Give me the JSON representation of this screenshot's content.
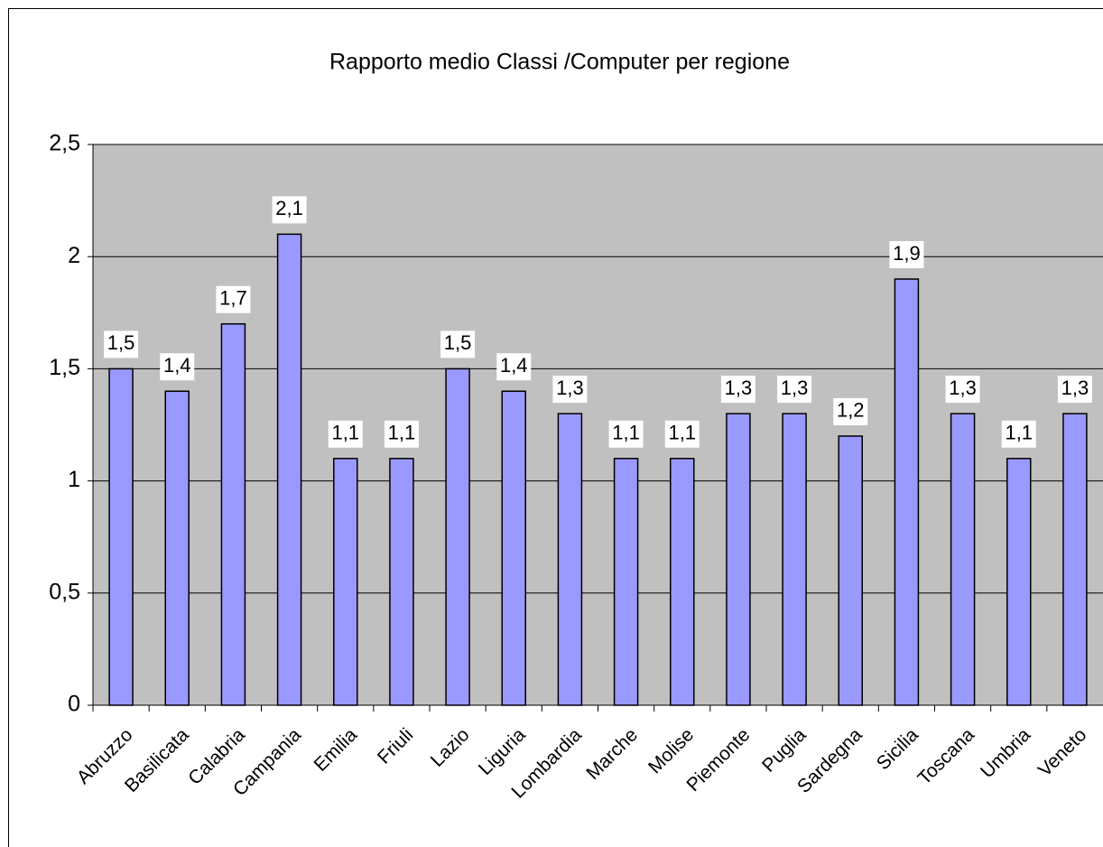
{
  "chart_data": {
    "type": "bar",
    "title": "Rapporto medio Classi /Computer per regione",
    "categories": [
      "Abruzzo",
      "Basilicata",
      "Calabria",
      "Campania",
      "Emilia",
      "Friuli",
      "Lazio",
      "Liguria",
      "Lombardia",
      "Marche",
      "Molise",
      "Piemonte",
      "Puglia",
      "Sardegna",
      "Sicilia",
      "Toscana",
      "Umbria",
      "Veneto"
    ],
    "values": [
      1.5,
      1.4,
      1.7,
      2.1,
      1.1,
      1.1,
      1.5,
      1.4,
      1.3,
      1.1,
      1.1,
      1.3,
      1.3,
      1.2,
      1.9,
      1.3,
      1.1,
      1.3
    ],
    "value_labels": [
      "1,5",
      "1,4",
      "1,7",
      "2,1",
      "1,1",
      "1,1",
      "1,5",
      "1,4",
      "1,3",
      "1,1",
      "1,1",
      "1,3",
      "1,3",
      "1,2",
      "1,9",
      "1,3",
      "1,1",
      "1,3"
    ],
    "color": "#9999ff",
    "ylim": [
      0,
      2.5
    ],
    "yticks": [
      0,
      {
        "value": 0.5,
        "label": "0,5"
      },
      1,
      {
        "value": 1.5,
        "label": "1,5"
      },
      2,
      {
        "value": 2.5,
        "label": "2,5"
      }
    ],
    "grid": true
  }
}
